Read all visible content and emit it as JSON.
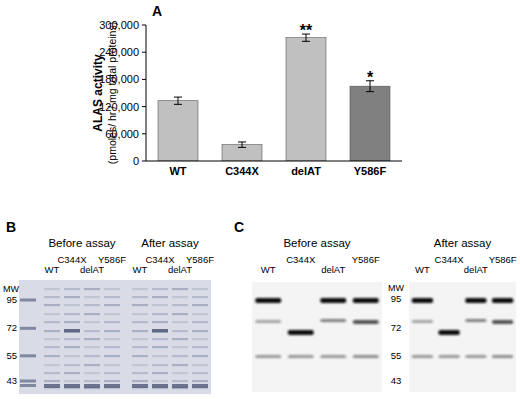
{
  "chart_data": {
    "type": "bar",
    "panel_label": "A",
    "y_label": "ALAS activity",
    "y_label_sub": "(pmoles/ hr / mg total proteins)",
    "categories": [
      "WT",
      "C344X",
      "delAT",
      "Y586F"
    ],
    "values": [
      133000,
      36000,
      272000,
      165000
    ],
    "errors": [
      8000,
      6000,
      8000,
      12000
    ],
    "colors": [
      "#c0c0c0",
      "#c0c0c0",
      "#c0c0c0",
      "#808080"
    ],
    "annotations": [
      {
        "text": "**",
        "category": "delAT"
      },
      {
        "text": "*",
        "category": "Y586F"
      }
    ],
    "ylim": [
      0,
      300000
    ],
    "yticks": [
      0,
      {
        "value": 60000,
        "label": "60,000"
      },
      {
        "value": 120000,
        "label": "120,000"
      },
      {
        "value": 180000,
        "label": "180,000"
      },
      {
        "value": 240000,
        "label": "240,000"
      },
      {
        "value": 300000,
        "label": "300,000"
      }
    ],
    "grid": false
  },
  "blots": [
    {
      "panel_label": "B",
      "groups": [
        "Before assay",
        "After assay"
      ],
      "lanes": [
        "WT",
        "C344X",
        "delAT",
        "Y586F"
      ],
      "mw_label": "MW",
      "mw": [
        95,
        72,
        55,
        43
      ]
    },
    {
      "panel_label": "C",
      "groups": [
        "Before assay",
        "After assay"
      ],
      "lanes": [
        "WT",
        "C344X",
        "delAT",
        "Y586F"
      ],
      "mw_label": "MW",
      "mw": [
        95,
        72,
        55,
        43
      ]
    }
  ]
}
